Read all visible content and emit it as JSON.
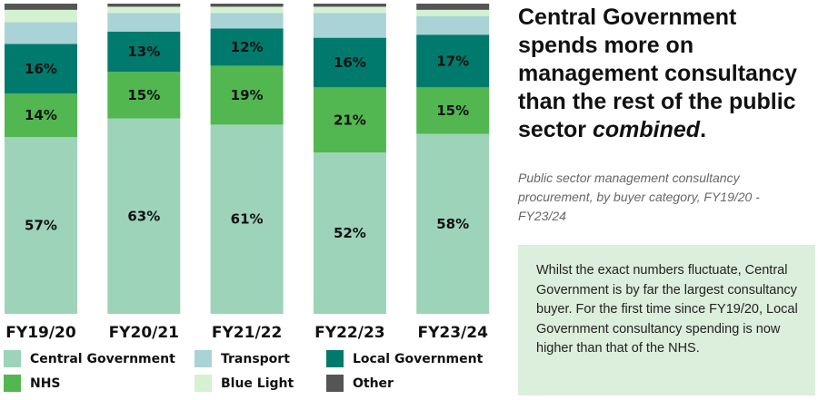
{
  "chart_data": {
    "type": "bar",
    "stacked": true,
    "categories": [
      "FY19/20",
      "FY20/21",
      "FY21/22",
      "FY22/23",
      "FY23/24"
    ],
    "ylim": [
      0,
      100
    ],
    "grid": false,
    "legend_placement": "bottom",
    "series": [
      {
        "name": "Central Government",
        "color": "#9dd3b9",
        "values": [
          57,
          63,
          61,
          52,
          58
        ],
        "labeled": true
      },
      {
        "name": "NHS",
        "color": "#52b750",
        "values": [
          14,
          15,
          19,
          21,
          15
        ],
        "labeled": true
      },
      {
        "name": "Local Government",
        "color": "#007a6c",
        "values": [
          16,
          13,
          12,
          16,
          17
        ],
        "labeled": true
      },
      {
        "name": "Transport",
        "color": "#a9d3d6",
        "values": [
          7,
          6,
          5,
          8,
          6
        ],
        "labeled": false
      },
      {
        "name": "Blue Light",
        "color": "#d4f2d2",
        "values": [
          4,
          2,
          2,
          2,
          2
        ],
        "labeled": false
      },
      {
        "name": "Other",
        "color": "#555555",
        "values": [
          2,
          1,
          1,
          1,
          2
        ],
        "labeled": false
      }
    ]
  },
  "title_parts": {
    "main": "Central Government spends more on management consultancy than the rest of the public sector ",
    "emph": "combined",
    "end": "."
  },
  "subtitle": "Public sector management consultancy procurement, by buyer category, FY19/20 - FY23/24",
  "note": "Whilst the exact numbers fluctuate, Central Government is by far the largest consultancy buyer. For the first time since FY19/20, Local Government consultancy spending is now higher than that of the NHS."
}
